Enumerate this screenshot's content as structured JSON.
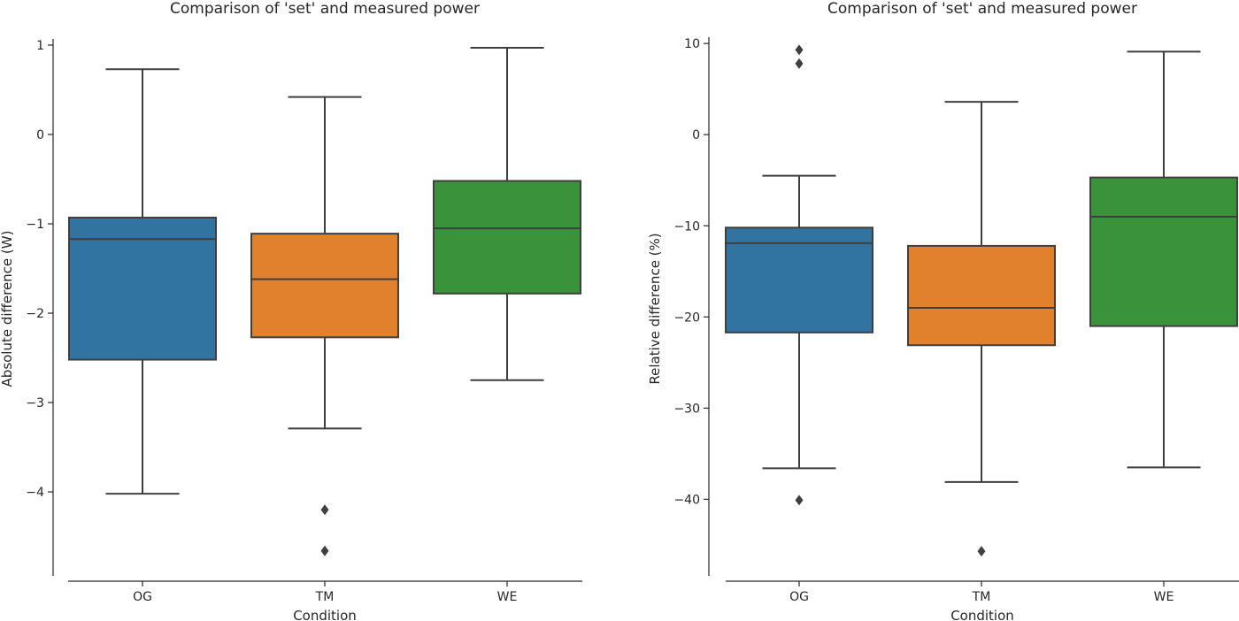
{
  "chart_data": [
    {
      "type": "boxplot",
      "title": "Comparison of 'set' and measured power",
      "xlabel": "Condition",
      "ylabel": "Absolute difference (W)",
      "ylim": [
        -4.95,
        1.02
      ],
      "yticks": [
        1,
        0,
        -1,
        -2,
        -3,
        -4
      ],
      "ytick_labels": [
        "1",
        "0",
        "−1",
        "−2",
        "−3",
        "−4"
      ],
      "categories": [
        "OG",
        "TM",
        "WE"
      ],
      "colors": [
        "#3274a1",
        "#e1812c",
        "#3a923a"
      ],
      "boxes": [
        {
          "name": "OG",
          "whisker_high": 0.73,
          "q3": -0.93,
          "median": -1.17,
          "q1": -2.52,
          "whisker_low": -4.02,
          "outliers": []
        },
        {
          "name": "TM",
          "whisker_high": 0.42,
          "q3": -1.11,
          "median": -1.62,
          "q1": -2.27,
          "whisker_low": -3.29,
          "outliers": [
            -4.2,
            -4.66
          ]
        },
        {
          "name": "WE",
          "whisker_high": 0.97,
          "q3": -0.52,
          "median": -1.05,
          "q1": -1.78,
          "whisker_low": -2.75,
          "outliers": []
        }
      ]
    },
    {
      "type": "boxplot",
      "title": "Comparison of 'set' and measured power",
      "xlabel": "Condition",
      "ylabel": "Relative difference (%)",
      "ylim": [
        -48.5,
        10.5
      ],
      "yticks": [
        10,
        0,
        -10,
        -20,
        -30,
        -40
      ],
      "ytick_labels": [
        "10",
        "0",
        "−10",
        "−20",
        "−30",
        "−40"
      ],
      "categories": [
        "OG",
        "TM",
        "WE"
      ],
      "colors": [
        "#3274a1",
        "#e1812c",
        "#3a923a"
      ],
      "boxes": [
        {
          "name": "OG",
          "whisker_high": -4.5,
          "q3": -10.2,
          "median": -11.9,
          "q1": -21.7,
          "whisker_low": -36.6,
          "outliers": [
            9.3,
            7.8,
            -40.1
          ]
        },
        {
          "name": "TM",
          "whisker_high": 3.6,
          "q3": -12.2,
          "median": -19.0,
          "q1": -23.1,
          "whisker_low": -38.1,
          "outliers": [
            -45.7
          ]
        },
        {
          "name": "WE",
          "whisker_high": 9.1,
          "q3": -4.7,
          "median": -9.0,
          "q1": -21.0,
          "whisker_low": -36.5,
          "outliers": []
        }
      ]
    }
  ]
}
